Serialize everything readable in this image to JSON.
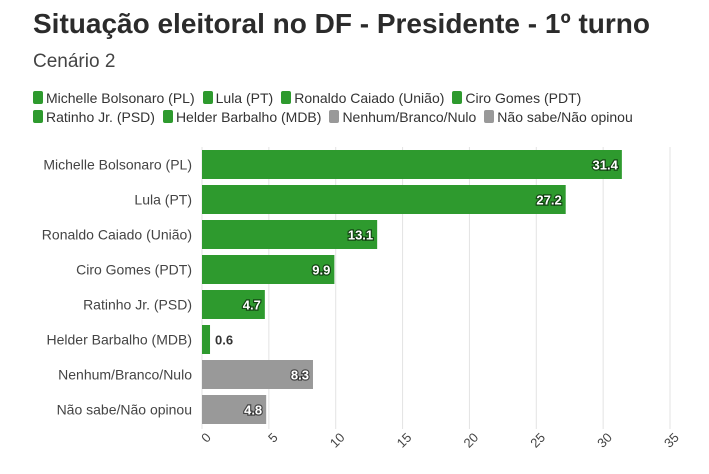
{
  "title": "Situação eleitoral no DF - Presidente - 1º turno",
  "subtitle": "Cenário 2",
  "colors": {
    "green": "#2e9a2e",
    "gray": "#999999"
  },
  "chart_data": {
    "type": "bar",
    "orientation": "horizontal",
    "title": "Situação eleitoral no DF - Presidente - 1º turno",
    "subtitle": "Cenário 2",
    "categories": [
      "Michelle Bolsonaro (PL)",
      "Lula (PT)",
      "Ronaldo Caiado (União)",
      "Ciro Gomes (PDT)",
      "Ratinho Jr. (PSD)",
      "Helder Barbalho (MDB)",
      "Nenhum/Branco/Nulo",
      "Não sabe/Não opinou"
    ],
    "values": [
      31.4,
      27.2,
      13.1,
      9.9,
      4.7,
      0.6,
      8.3,
      4.8
    ],
    "value_labels": [
      "31.4",
      "27.2",
      "13.1",
      "9.9",
      "4.7",
      "0.6",
      "8.3",
      "4.8"
    ],
    "bar_colors": [
      "green",
      "green",
      "green",
      "green",
      "green",
      "green",
      "gray",
      "gray"
    ],
    "xlim": [
      0,
      35
    ],
    "ticks": [
      0,
      5,
      10,
      15,
      20,
      25,
      30,
      35
    ],
    "tick_labels": [
      "0",
      "5",
      "10",
      "15",
      "20",
      "25",
      "30",
      "35"
    ],
    "grid": true,
    "legend": {
      "placement": "top",
      "rows": [
        [
          {
            "label": "Michelle Bolsonaro (PL)",
            "color": "green"
          },
          {
            "label": "Lula (PT)",
            "color": "green"
          },
          {
            "label": "Ronaldo Caiado (União)",
            "color": "green"
          },
          {
            "label": "Ciro Gomes (PDT)",
            "color": "green"
          }
        ],
        [
          {
            "label": "Ratinho Jr. (PSD)",
            "color": "green"
          },
          {
            "label": "Helder Barbalho (MDB)",
            "color": "green"
          },
          {
            "label": "Nenhum/Branco/Nulo",
            "color": "gray"
          },
          {
            "label": "Não sabe/Não opinou",
            "color": "gray"
          }
        ]
      ]
    }
  }
}
